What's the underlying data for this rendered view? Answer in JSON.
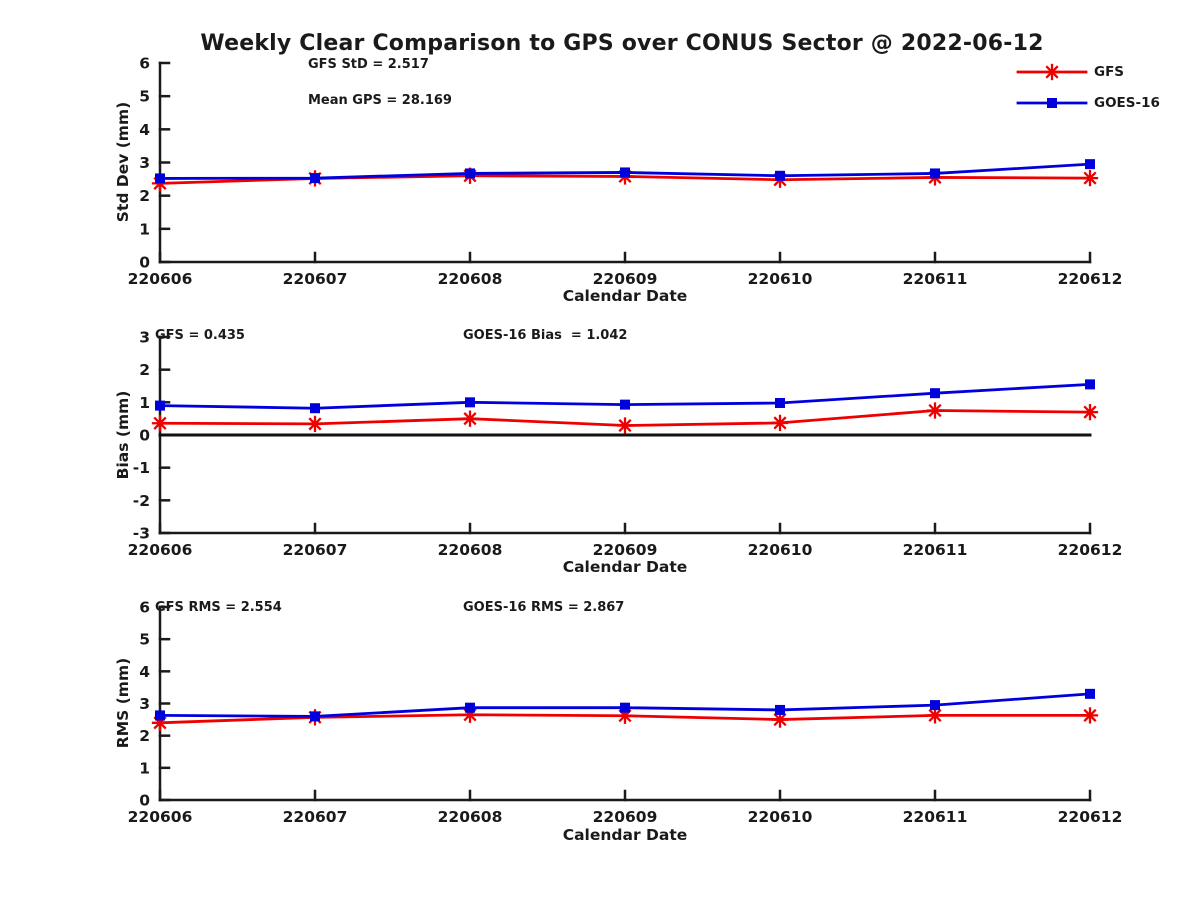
{
  "title": "Weekly Clear Comparison to GPS over CONUS Sector @ 2022-06-12",
  "legend": {
    "items": [
      {
        "label": "GFS",
        "color": "#ee0000",
        "marker": "asterisk"
      },
      {
        "label": "GOES-16",
        "color": "#0000dd",
        "marker": "square"
      }
    ]
  },
  "colors": {
    "gfs": "#ee0000",
    "goes16": "#0000dd",
    "axis": "#1a1a1a"
  },
  "chart_data": [
    {
      "type": "line",
      "panel": "std-dev",
      "xlabel": "Calendar Date",
      "ylabel": "Std Dev (mm)",
      "categories": [
        "220606",
        "220607",
        "220608",
        "220609",
        "220610",
        "220611",
        "220612"
      ],
      "ylim": [
        0,
        6
      ],
      "yticks": [
        0,
        1,
        2,
        3,
        4,
        5,
        6
      ],
      "zero_line": false,
      "grid": false,
      "legend_position": "top-right-outside",
      "annotations": [
        {
          "text": "GFS StD = 2.517"
        },
        {
          "text": "Mean GPS = 28.169"
        }
      ],
      "series": [
        {
          "name": "GFS",
          "color": "#ee0000",
          "marker": "asterisk",
          "values": [
            2.37,
            2.52,
            2.6,
            2.58,
            2.48,
            2.55,
            2.53
          ]
        },
        {
          "name": "GOES-16",
          "color": "#0000dd",
          "marker": "square",
          "values": [
            2.52,
            2.53,
            2.67,
            2.7,
            2.6,
            2.67,
            2.95
          ]
        }
      ]
    },
    {
      "type": "line",
      "panel": "bias",
      "xlabel": "Calendar Date",
      "ylabel": "Bias (mm)",
      "categories": [
        "220606",
        "220607",
        "220608",
        "220609",
        "220610",
        "220611",
        "220612"
      ],
      "ylim": [
        -3,
        3
      ],
      "yticks": [
        -3,
        -2,
        -1,
        0,
        1,
        2,
        3
      ],
      "zero_line": true,
      "grid": false,
      "annotations": [
        {
          "text": "GFS = 0.435"
        },
        {
          "text": "GOES-16 Bias  = 1.042"
        }
      ],
      "series": [
        {
          "name": "GFS",
          "color": "#ee0000",
          "marker": "asterisk",
          "values": [
            0.36,
            0.34,
            0.5,
            0.29,
            0.37,
            0.75,
            0.7
          ]
        },
        {
          "name": "GOES-16",
          "color": "#0000dd",
          "marker": "square",
          "values": [
            0.9,
            0.82,
            1.0,
            0.93,
            0.98,
            1.28,
            1.55
          ]
        }
      ]
    },
    {
      "type": "line",
      "panel": "rms",
      "xlabel": "Calendar Date",
      "ylabel": "RMS (mm)",
      "categories": [
        "220606",
        "220607",
        "220608",
        "220609",
        "220610",
        "220611",
        "220612"
      ],
      "ylim": [
        0,
        6
      ],
      "yticks": [
        0,
        1,
        2,
        3,
        4,
        5,
        6
      ],
      "zero_line": false,
      "grid": false,
      "annotations": [
        {
          "text": "GFS RMS = 2.554"
        },
        {
          "text": "GOES-16 RMS = 2.867"
        }
      ],
      "series": [
        {
          "name": "GFS",
          "color": "#ee0000",
          "marker": "asterisk",
          "values": [
            2.4,
            2.57,
            2.65,
            2.62,
            2.5,
            2.63,
            2.63
          ]
        },
        {
          "name": "GOES-16",
          "color": "#0000dd",
          "marker": "square",
          "values": [
            2.63,
            2.6,
            2.87,
            2.87,
            2.8,
            2.95,
            3.3
          ]
        }
      ]
    }
  ]
}
